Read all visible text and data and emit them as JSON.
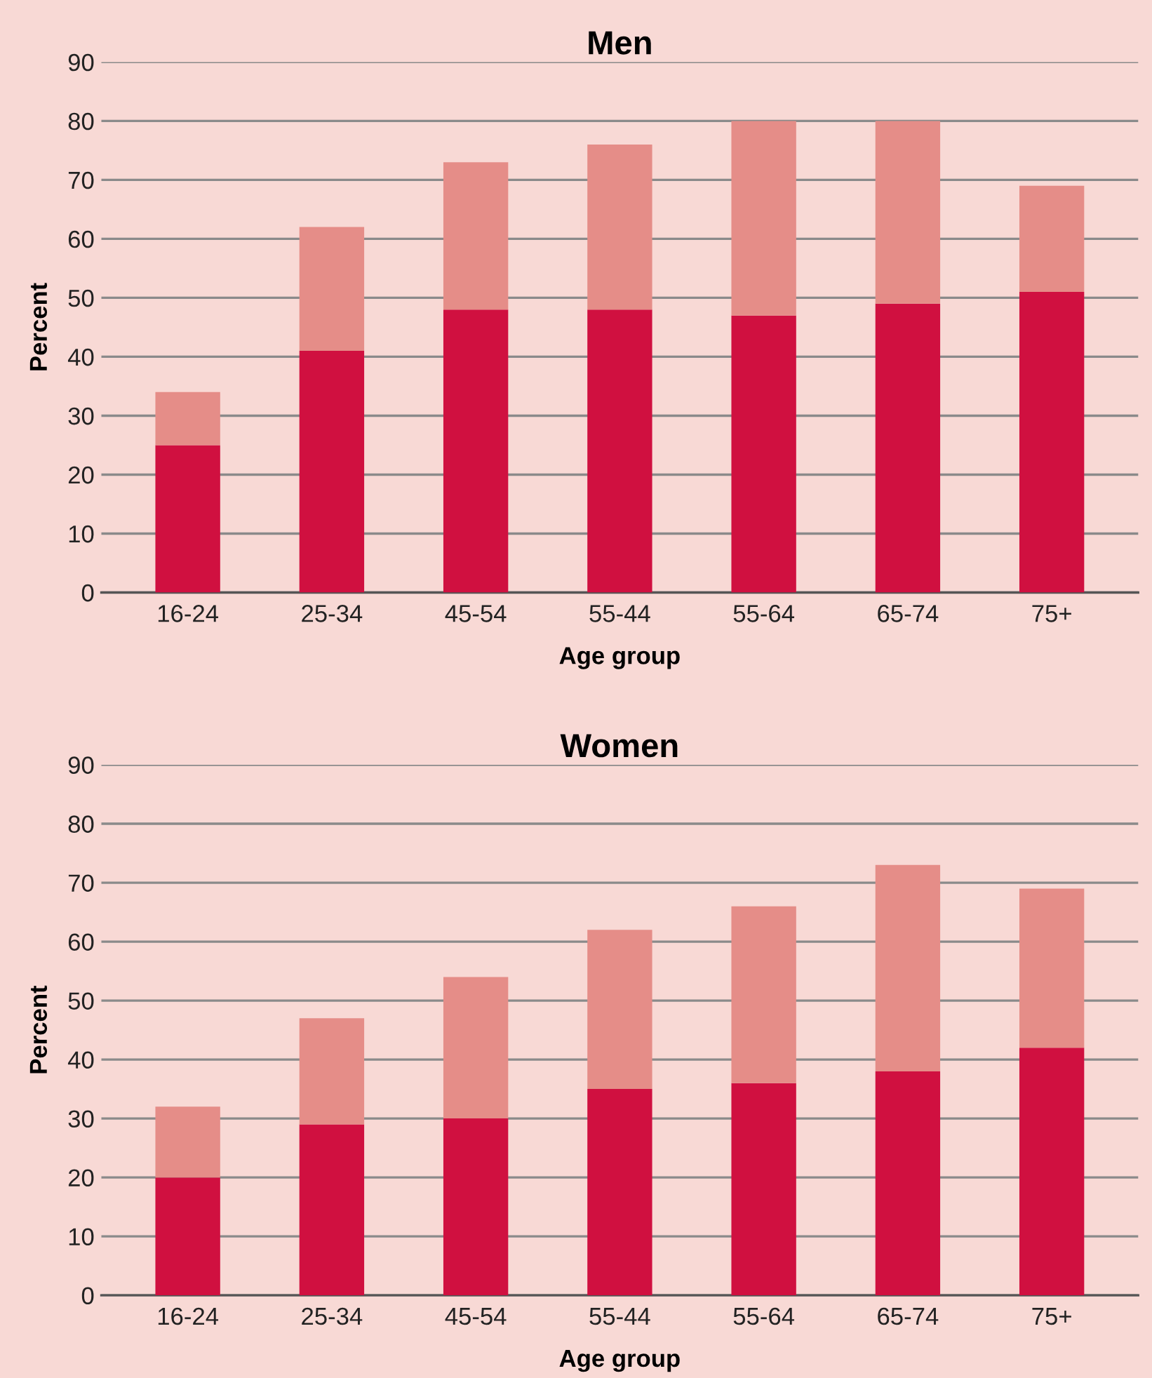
{
  "chart_data": [
    {
      "type": "bar",
      "title": "Men",
      "xlabel": "Age group",
      "ylabel": "Percent",
      "stacked": true,
      "grid": "y",
      "categories": [
        "16-24",
        "25-34",
        "45-54",
        "55-44",
        "55-64",
        "65-74",
        "75+"
      ],
      "series": [
        {
          "color": "#d01040",
          "values": [
            25,
            41,
            48,
            48,
            47,
            49,
            51
          ]
        },
        {
          "color": "#e58d88",
          "values": [
            9,
            21,
            25,
            28,
            33,
            31,
            18
          ]
        }
      ],
      "ylim": [
        0,
        90
      ],
      "yticks": [
        0,
        10,
        20,
        30,
        40,
        50,
        60,
        70,
        80,
        90
      ]
    },
    {
      "type": "bar",
      "title": "Women",
      "xlabel": "Age group",
      "ylabel": "Percent",
      "stacked": true,
      "grid": "y",
      "categories": [
        "16-24",
        "25-34",
        "45-54",
        "55-44",
        "55-64",
        "65-74",
        "75+"
      ],
      "series": [
        {
          "color": "#d01040",
          "values": [
            20,
            29,
            30,
            35,
            36,
            38,
            42
          ]
        },
        {
          "color": "#e58d88",
          "values": [
            12,
            18,
            24,
            27,
            30,
            35,
            27
          ]
        }
      ],
      "ylim": [
        0,
        90
      ],
      "yticks": [
        0,
        10,
        20,
        30,
        40,
        50,
        60,
        70,
        80,
        90
      ]
    }
  ]
}
